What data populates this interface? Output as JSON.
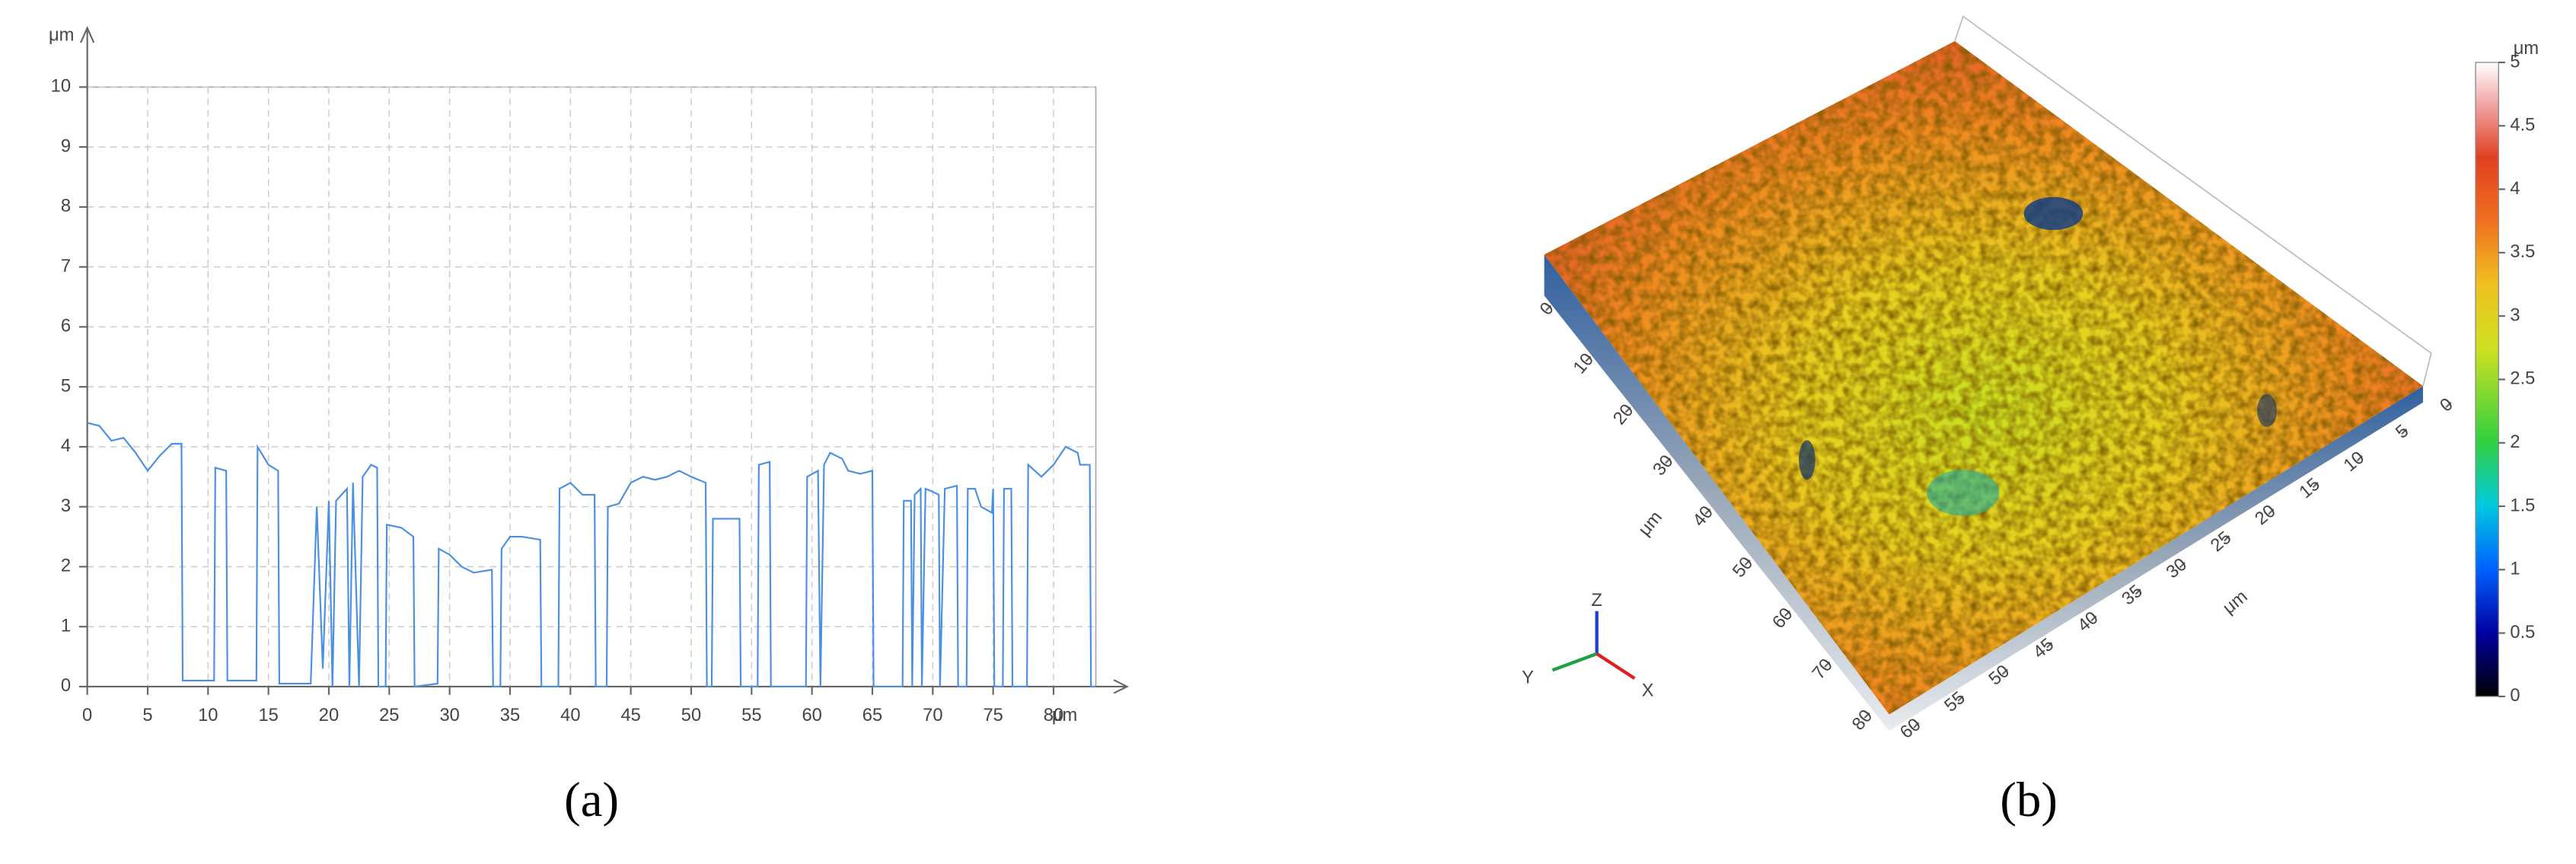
{
  "chart_data": [
    {
      "type": "line",
      "caption": "(a)",
      "xlabel": "μm",
      "ylabel": "μm",
      "color": "#4a8fe0",
      "xlim": [
        0,
        83.5
      ],
      "ylim": [
        0,
        10
      ],
      "xticks": [
        0,
        5,
        10,
        15,
        20,
        25,
        30,
        35,
        40,
        45,
        50,
        55,
        60,
        65,
        70,
        75,
        80
      ],
      "yticks": [
        0,
        1,
        2,
        3,
        4,
        5,
        6,
        7,
        8,
        9,
        10
      ],
      "grid": true,
      "x": [
        0,
        1,
        2,
        3,
        4,
        5,
        6,
        7,
        7.8,
        7.9,
        10.5,
        10.6,
        11.5,
        11.6,
        14,
        14.1,
        15,
        15.8,
        15.9,
        18.5,
        19,
        19.5,
        20,
        20.3,
        20.6,
        21.5,
        21.7,
        22,
        22.5,
        22.8,
        23.5,
        24,
        24.1,
        24.7,
        24.8,
        26,
        27,
        27.1,
        29,
        29.1,
        30,
        31,
        32,
        33.5,
        33.6,
        34.2,
        34.3,
        35,
        36,
        37.5,
        37.6,
        39,
        39.1,
        40,
        41,
        42,
        42.1,
        43,
        43.1,
        44,
        45,
        46,
        47,
        48,
        49,
        50,
        51.2,
        51.3,
        51.7,
        51.8,
        54,
        54.1,
        55.5,
        55.6,
        56.5,
        56.6,
        59.5,
        59.6,
        60.5,
        60.7,
        61,
        61.5,
        62.5,
        63,
        64,
        65,
        65.1,
        67.5,
        67.6,
        68.2,
        68.3,
        68.5,
        69,
        69.1,
        69.4,
        70,
        70.5,
        70.6,
        71,
        72,
        72.1,
        72.8,
        72.9,
        73.5,
        74,
        74.9,
        75,
        75.1,
        75.8,
        75.9,
        76.5,
        76.6,
        77.8,
        77.9,
        79,
        80,
        81,
        82,
        82.2,
        83,
        83.1,
        83.5
      ],
      "values": [
        4.4,
        4.35,
        4.1,
        4.15,
        3.9,
        3.6,
        3.85,
        4.05,
        4.05,
        0.1,
        0.1,
        3.65,
        3.6,
        0.1,
        0.1,
        4.0,
        3.7,
        3.6,
        0.05,
        0.05,
        3.0,
        0.3,
        3.1,
        0,
        3.1,
        3.3,
        0,
        3.4,
        0,
        3.5,
        3.7,
        3.65,
        0,
        0,
        2.7,
        2.65,
        2.5,
        0,
        0.05,
        2.3,
        2.2,
        2.0,
        1.9,
        1.95,
        0,
        0,
        2.3,
        2.5,
        2.5,
        2.45,
        0,
        0,
        3.3,
        3.4,
        3.2,
        3.2,
        0,
        0,
        3.0,
        3.05,
        3.4,
        3.5,
        3.45,
        3.5,
        3.6,
        3.5,
        3.4,
        0,
        0,
        2.8,
        2.8,
        0,
        0,
        3.7,
        3.75,
        0,
        0,
        3.5,
        3.6,
        0,
        3.7,
        3.9,
        3.8,
        3.6,
        3.55,
        3.6,
        0,
        0,
        3.1,
        3.1,
        0,
        3.2,
        3.3,
        0,
        3.3,
        3.25,
        3.2,
        0,
        3.3,
        3.35,
        0,
        0,
        3.3,
        3.3,
        3.0,
        2.9,
        3.3,
        0,
        0,
        3.3,
        3.3,
        0,
        0,
        3.7,
        3.5,
        3.7,
        4.0,
        3.9,
        3.7,
        3.7,
        0,
        0
      ]
    },
    {
      "type": "surface3d",
      "caption": "(b)",
      "colorbar_label": "μm",
      "clim": [
        0,
        5
      ],
      "colorbar_ticks": [
        0,
        0.5,
        1,
        1.5,
        2,
        2.5,
        3,
        3.5,
        4,
        4.5,
        5
      ],
      "left_label": "μm",
      "left_lim": [
        0,
        80
      ],
      "left_ticks": [
        0,
        10,
        20,
        30,
        40,
        50,
        60,
        70,
        80
      ],
      "right_label": "μm",
      "right_lim": [
        0,
        60
      ],
      "right_ticks": [
        0,
        5,
        10,
        15,
        20,
        25,
        30,
        35,
        40,
        45,
        50,
        55,
        60
      ],
      "axes": [
        "X",
        "Y",
        "Z"
      ]
    }
  ]
}
